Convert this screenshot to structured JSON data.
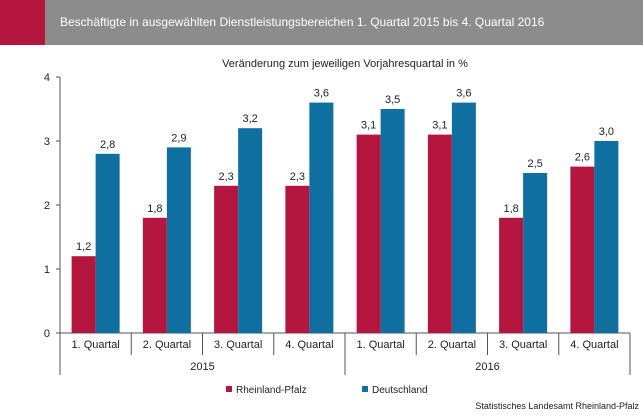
{
  "header": {
    "title": "Beschäftigte in ausgewählten Dienstleistungsbereichen 1. Quartal 2015 bis 4. Quartal 2016"
  },
  "colors": {
    "header_bg": "#8c8c8c",
    "header_accent": "#b5163f",
    "rheinland_pfalz": "#b5163f",
    "deutschland": "#0f6fa1"
  },
  "footer": {
    "source": "Statistisches Landesamt Rheinland-Pfalz"
  },
  "chart_data": {
    "type": "bar",
    "title": "Veränderung zum jeweiligen Vorjahresquartal in %",
    "categories": [
      "1. Quartal",
      "2. Quartal",
      "3. Quartal",
      "4. Quartal",
      "1. Quartal",
      "2. Quartal",
      "3. Quartal",
      "4. Quartal"
    ],
    "groups": [
      {
        "label": "2015",
        "span": 4
      },
      {
        "label": "2016",
        "span": 4
      }
    ],
    "series": [
      {
        "name": "Rheinland-Pfalz",
        "color": "#b5163f",
        "values": [
          1.2,
          1.8,
          2.3,
          2.3,
          3.1,
          3.1,
          1.8,
          2.6
        ],
        "labels": [
          "1,2",
          "1,8",
          "2,3",
          "2,3",
          "3,1",
          "3,1",
          "1,8",
          "2,6"
        ]
      },
      {
        "name": "Deutschland",
        "color": "#0f6fa1",
        "values": [
          2.8,
          2.9,
          3.2,
          3.6,
          3.5,
          3.6,
          2.5,
          3.0
        ],
        "labels": [
          "2,8",
          "2,9",
          "3,2",
          "3,6",
          "3,5",
          "3,6",
          "2,5",
          "3,0"
        ]
      }
    ],
    "ylim": [
      0,
      4
    ],
    "yticks": [
      0,
      1,
      2,
      3,
      4
    ],
    "legend_position": "bottom",
    "grid": false
  }
}
